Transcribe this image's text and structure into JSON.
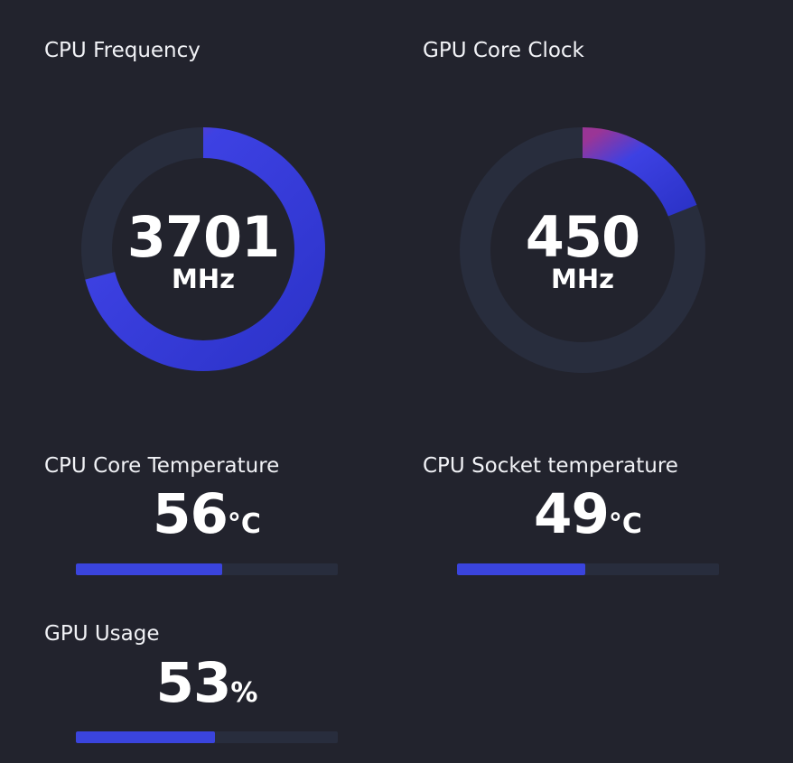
{
  "gauges": [
    {
      "title": "CPU Frequency",
      "value": "3701",
      "unit": "MHz",
      "fill_fraction": 0.71
    },
    {
      "title": "GPU Core Clock",
      "value": "450",
      "unit": "MHz",
      "fill_fraction": 0.19
    }
  ],
  "metrics": [
    {
      "title": "CPU Core Temperature",
      "value": "56",
      "unit": "°C",
      "fill_fraction": 0.56
    },
    {
      "title": "CPU Socket temperature",
      "value": "49",
      "unit": "°C",
      "fill_fraction": 0.49
    },
    {
      "title": "GPU Usage",
      "value": "53",
      "unit": "%",
      "fill_fraction": 0.53
    }
  ],
  "colors": {
    "background": "#22232d",
    "track": "#282d3d",
    "accent_blue": "#3a44dd",
    "accent_magenta": "#9a3596"
  }
}
